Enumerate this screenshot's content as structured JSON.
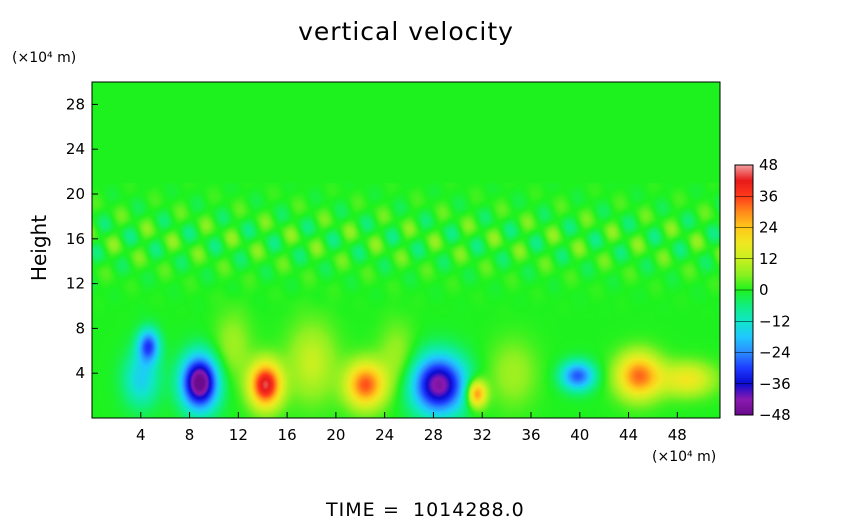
{
  "chart_data": {
    "type": "heatmap",
    "title": "vertical velocity",
    "ylabel": "Height",
    "xlabel": "",
    "x_unit": "(×10⁴ m)",
    "y_unit": "(×10⁴ m)",
    "xlim": [
      0,
      51.5
    ],
    "ylim": [
      0,
      30
    ],
    "x_ticks": [
      4,
      8,
      12,
      16,
      20,
      24,
      28,
      32,
      36,
      40,
      44,
      48
    ],
    "y_ticks": [
      4,
      8,
      12,
      16,
      20,
      24,
      28
    ],
    "colorbar": {
      "min": -48,
      "max": 48,
      "ticks": [
        48,
        36,
        24,
        12,
        0,
        -12,
        -24,
        -36,
        -48
      ],
      "stops": [
        {
          "v": -48,
          "color": "#6a0a8c"
        },
        {
          "v": -42,
          "color": "#8a1ab0"
        },
        {
          "v": -36,
          "color": "#0a0ad0"
        },
        {
          "v": -30,
          "color": "#1e3cff"
        },
        {
          "v": -24,
          "color": "#2a8cff"
        },
        {
          "v": -18,
          "color": "#20c8ff"
        },
        {
          "v": -12,
          "color": "#10e6c8"
        },
        {
          "v": -6,
          "color": "#10ee80"
        },
        {
          "v": 0,
          "color": "#1ef21e"
        },
        {
          "v": 6,
          "color": "#8cf020"
        },
        {
          "v": 12,
          "color": "#c8f020"
        },
        {
          "v": 18,
          "color": "#f0e820"
        },
        {
          "v": 24,
          "color": "#ffc81a"
        },
        {
          "v": 30,
          "color": "#ff8a1a"
        },
        {
          "v": 36,
          "color": "#ff3a1a"
        },
        {
          "v": 42,
          "color": "#e81a1a"
        },
        {
          "v": 48,
          "color": "#f4a0a0"
        }
      ]
    },
    "features": [
      {
        "x": 8.8,
        "y": 3.2,
        "value": -50,
        "sx": 1.5,
        "sy": 2.4
      },
      {
        "x": 4.6,
        "y": 6.5,
        "value": -28,
        "sx": 0.9,
        "sy": 1.5
      },
      {
        "x": 4.0,
        "y": 3.5,
        "value": -16,
        "sx": 1.5,
        "sy": 2.5
      },
      {
        "x": 14.2,
        "y": 3.0,
        "value": 44,
        "sx": 1.3,
        "sy": 2.0
      },
      {
        "x": 22.4,
        "y": 3.0,
        "value": 34,
        "sx": 1.6,
        "sy": 2.0
      },
      {
        "x": 28.4,
        "y": 3.0,
        "value": -44,
        "sx": 2.2,
        "sy": 2.6
      },
      {
        "x": 31.5,
        "y": 2.2,
        "value": 32,
        "sx": 0.8,
        "sy": 1.2
      },
      {
        "x": 39.8,
        "y": 3.8,
        "value": -28,
        "sx": 1.4,
        "sy": 1.3
      },
      {
        "x": 44.8,
        "y": 3.8,
        "value": 32,
        "sx": 1.8,
        "sy": 2.0
      },
      {
        "x": 48.8,
        "y": 3.5,
        "value": 18,
        "sx": 2.2,
        "sy": 1.5
      },
      {
        "x": 18.0,
        "y": 5.0,
        "value": 12,
        "sx": 2.0,
        "sy": 3.5
      },
      {
        "x": 34.5,
        "y": 4.0,
        "value": 8,
        "sx": 2.0,
        "sy": 3.0
      },
      {
        "x": 25.0,
        "y": 5.5,
        "value": 8,
        "sx": 1.5,
        "sy": 3.0
      },
      {
        "x": 11.5,
        "y": 6.5,
        "value": 8,
        "sx": 1.5,
        "sy": 3.0
      }
    ]
  },
  "footer": {
    "time_label": "TIME",
    "time_equals": "=",
    "time_value": "1014288.0"
  }
}
